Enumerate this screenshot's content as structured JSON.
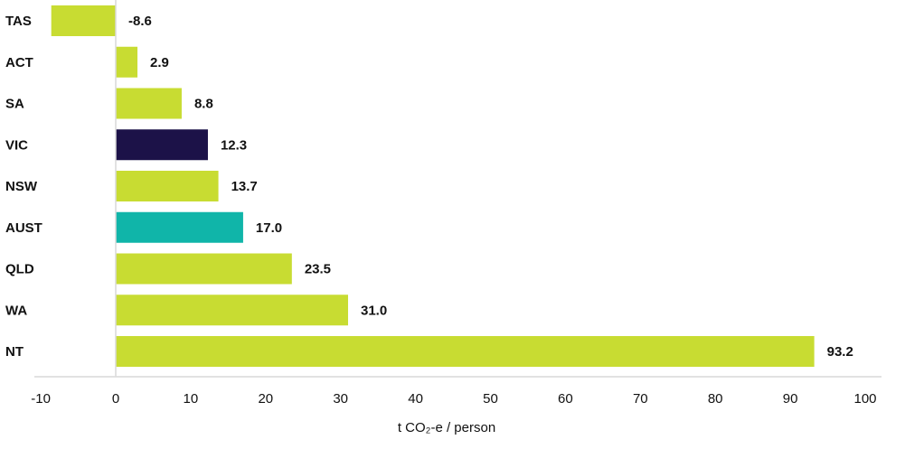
{
  "chart_data": {
    "type": "bar",
    "orientation": "horizontal",
    "categories": [
      "TAS",
      "ACT",
      "SA",
      "VIC",
      "NSW",
      "AUST",
      "QLD",
      "WA",
      "NT"
    ],
    "values": [
      -8.6,
      2.9,
      8.8,
      12.3,
      13.7,
      17.0,
      23.5,
      31.0,
      93.2
    ],
    "value_labels": [
      "-8.6",
      "2.9",
      "8.8",
      "12.3",
      "13.7",
      "17.0",
      "23.5",
      "31.0",
      "93.2"
    ],
    "colors": [
      "#c8dc32",
      "#c8dc32",
      "#c8dc32",
      "#1c1248",
      "#c8dc32",
      "#10b5a9",
      "#c8dc32",
      "#c8dc32",
      "#c8dc32"
    ],
    "xlabel": "t CO₂-e / person",
    "ylabel": "",
    "xlim": [
      -10,
      100
    ],
    "xticks": [
      "-10",
      "0",
      "10",
      "20",
      "30",
      "40",
      "50",
      "60",
      "70",
      "80",
      "90",
      "100"
    ],
    "grid": false,
    "legend": "none"
  }
}
